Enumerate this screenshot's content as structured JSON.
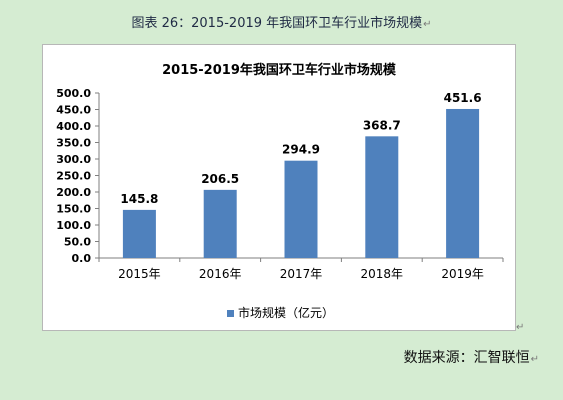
{
  "caption": {
    "text": "图表  26：2015-2019 年我国环卫车行业市场规模",
    "mark": "↵"
  },
  "source": {
    "text": "数据来源：汇智联恒",
    "mark": "↵"
  },
  "end_mark": "↵",
  "colors": {
    "bar": "#4f81bd",
    "background": "#d5ecd2"
  },
  "chart_data": {
    "type": "bar",
    "title": "2015-2019年我国环卫车行业市场规模",
    "categories": [
      "2015年",
      "2016年",
      "2017年",
      "2018年",
      "2019年"
    ],
    "series": [
      {
        "name": "市场规模（亿元）",
        "values": [
          145.8,
          206.5,
          294.9,
          368.7,
          451.6
        ]
      }
    ],
    "ylim": [
      0,
      500
    ],
    "ytick_step": 50,
    "ytick_labels": [
      "0.0",
      "50.0",
      "100.0",
      "150.0",
      "200.0",
      "250.0",
      "300.0",
      "350.0",
      "400.0",
      "450.0",
      "500.0"
    ],
    "value_labels": [
      "145.8",
      "206.5",
      "294.9",
      "368.7",
      "451.6"
    ],
    "grid": false,
    "legend_position": "bottom"
  }
}
